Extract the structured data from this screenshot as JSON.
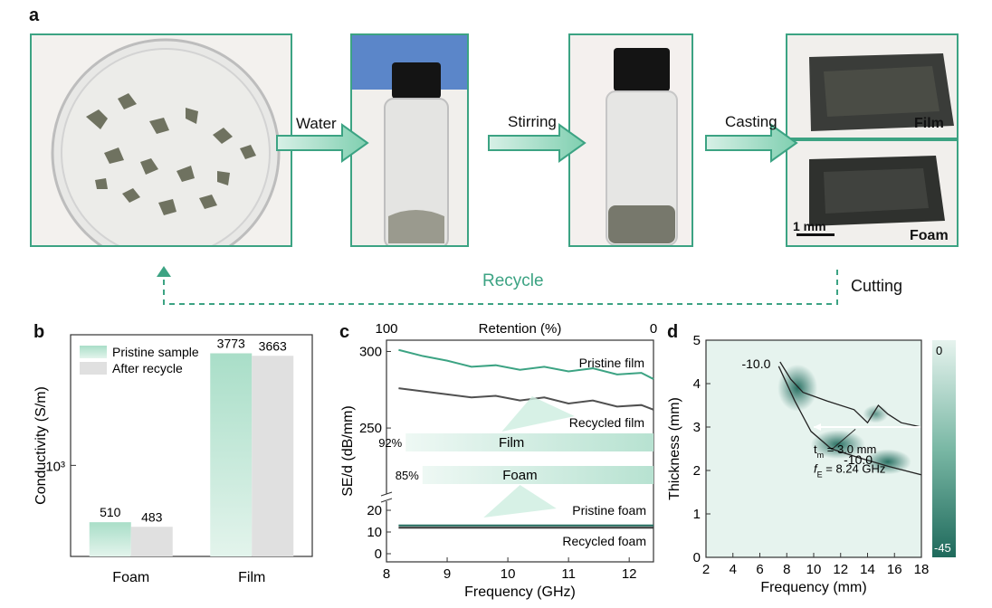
{
  "panel_a": {
    "letter": "a",
    "steps": [
      "Water",
      "Stirring",
      "Casting"
    ],
    "labels": {
      "film": "Film",
      "foam": "Foam",
      "scale": "1 mm",
      "recycle": "Recycle",
      "cutting": "Cutting"
    }
  },
  "colors": {
    "accent": "#3ca383",
    "light_accent": "#b8e3d2",
    "grey_bar": "#e0e0e0",
    "dark_line": "#505050",
    "map_dark": "#1f6a5c",
    "map_light": "#e6f3ee"
  },
  "chart_data": [
    {
      "id": "b",
      "letter": "b",
      "type": "bar",
      "categories": [
        "Foam",
        "Film"
      ],
      "series": [
        {
          "name": "Pristine sample",
          "values": [
            510,
            3773
          ]
        },
        {
          "name": "After recycle",
          "values": [
            483,
            3663
          ]
        }
      ],
      "ylabel": "Conductivity (S/m)",
      "yscale": "log",
      "ytick_label": "10³",
      "legend": "top-left"
    },
    {
      "id": "c",
      "letter": "c",
      "type": "line",
      "xlabel": "Frequency (GHz)",
      "ylabel": "SE/d (dB/mm)",
      "top_axis_label": "Retention (%)",
      "top_axis_ticks": [
        "100",
        "0"
      ],
      "x_ticks": [
        "8",
        "9",
        "10",
        "11",
        "12"
      ],
      "y_ticks_upper": [
        "300",
        "250"
      ],
      "y_ticks_lower": [
        "20",
        "10",
        "0"
      ],
      "xlim": [
        8,
        12.4
      ],
      "series": [
        {
          "name": "Pristine film",
          "x": [
            8.2,
            8.6,
            9.0,
            9.4,
            9.8,
            10.2,
            10.6,
            11.0,
            11.4,
            11.8,
            12.2,
            12.4
          ],
          "y": [
            301,
            297,
            294,
            290,
            291,
            288,
            290,
            287,
            289,
            285,
            286,
            282
          ]
        },
        {
          "name": "Recycled film",
          "x": [
            8.2,
            8.6,
            9.0,
            9.4,
            9.8,
            10.2,
            10.6,
            11.0,
            11.4,
            11.8,
            12.2,
            12.4
          ],
          "y": [
            276,
            274,
            272,
            270,
            271,
            268,
            270,
            266,
            268,
            264,
            265,
            262
          ]
        },
        {
          "name": "Pristine foam",
          "x": [
            8.2,
            12.4
          ],
          "y": [
            13,
            13
          ]
        },
        {
          "name": "Recycled foam",
          "x": [
            8.2,
            12.4
          ],
          "y": [
            12,
            12
          ]
        }
      ],
      "retention": [
        {
          "label": "Film",
          "percent": 92,
          "text": "92%"
        },
        {
          "label": "Foam",
          "percent": 85,
          "text": "85%"
        }
      ]
    },
    {
      "id": "d",
      "letter": "d",
      "type": "heatmap",
      "xlabel": "Frequency (mm)",
      "ylabel": "Thickness (mm)",
      "x_ticks": [
        "2",
        "4",
        "6",
        "8",
        "10",
        "12",
        "14",
        "16",
        "18"
      ],
      "y_ticks": [
        "0",
        "1",
        "2",
        "3",
        "4",
        "5"
      ],
      "xlim": [
        2,
        18
      ],
      "ylim": [
        0,
        5
      ],
      "colorbar": {
        "max_label": "0",
        "min_label": "-45",
        "range": [
          -45,
          0
        ]
      },
      "contour_label": "-10.0",
      "annotation": {
        "tm": "t",
        "tm_sub": "m",
        "tm_value": " = 3.0 mm",
        "fe": "f",
        "fe_sub": "E",
        "fe_value": " = 8.24 GHz"
      },
      "marker": {
        "thickness": 3.0,
        "x_from": 10,
        "x_to": 18
      }
    }
  ]
}
